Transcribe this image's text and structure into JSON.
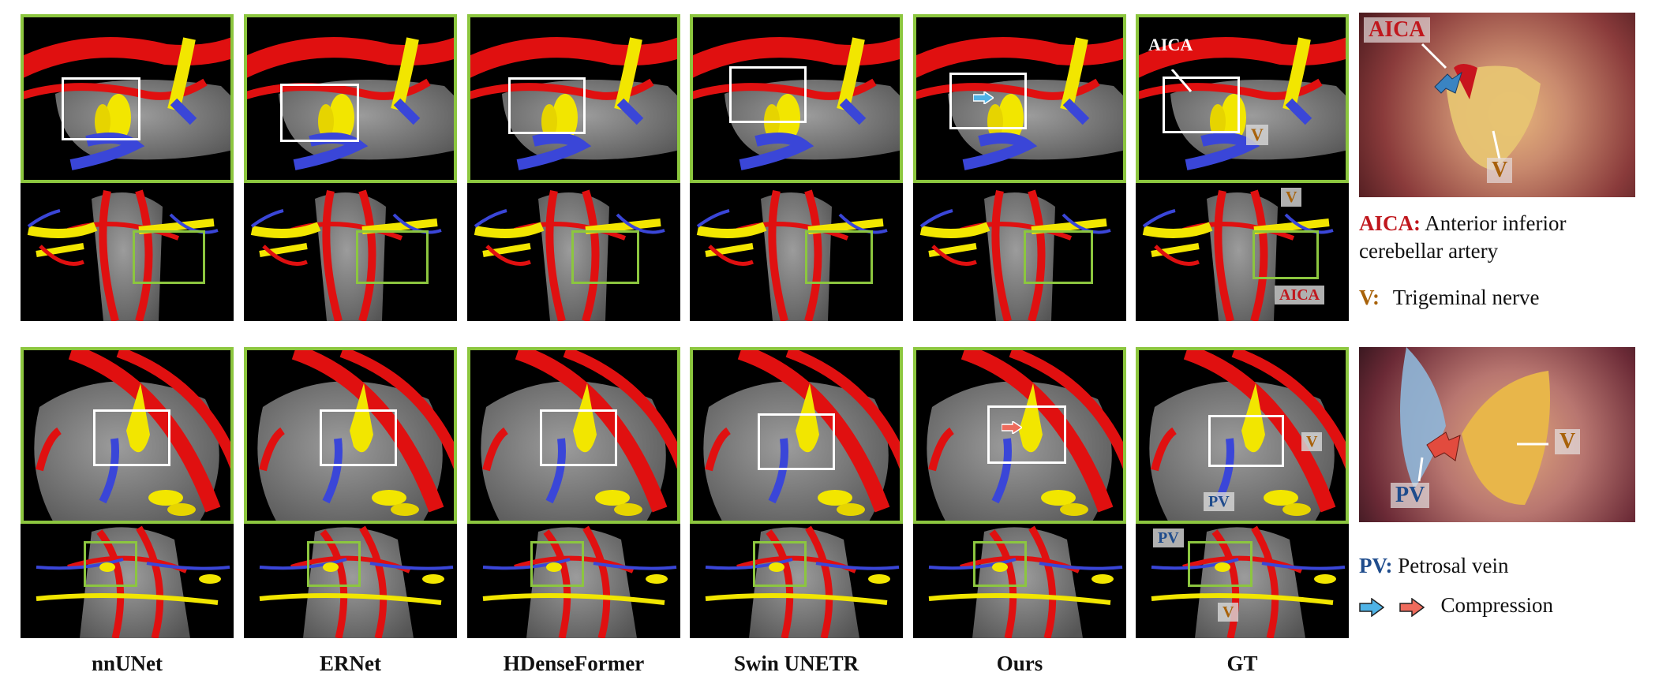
{
  "columns": [
    {
      "label": "nnUNet"
    },
    {
      "label": "ERNet"
    },
    {
      "label": "HDenseFormer"
    },
    {
      "label": "Swin UNETR"
    },
    {
      "label": "Ours"
    },
    {
      "label": "GT"
    }
  ],
  "gt_annotations": {
    "row1_zoom": [
      "AICA",
      "V"
    ],
    "row1_overview": [
      "V",
      "AICA"
    ],
    "row2_zoom": [
      "V",
      "PV"
    ],
    "row2_overview": [
      "PV",
      "V"
    ]
  },
  "photos": {
    "row1": [
      "AICA",
      "V"
    ],
    "row2": [
      "PV",
      "V"
    ]
  },
  "legend": {
    "aica_abbr": "AICA:",
    "aica_text_1": "Anterior inferior",
    "aica_text_2": "cerebellar artery",
    "v_abbr": "V:",
    "v_text": "Trigeminal nerve",
    "pv_abbr": "PV:",
    "pv_text": "Petrosal vein",
    "compression_text": "Compression"
  },
  "colors": {
    "artery": "#e01010",
    "nerve": "#f2e600",
    "vein": "#3a46d8",
    "brainstem": "#8a8a8a",
    "frame": "#8cc63f",
    "arrow_light_blue": "#4fb3e6",
    "arrow_salmon": "#ee6b5c"
  }
}
